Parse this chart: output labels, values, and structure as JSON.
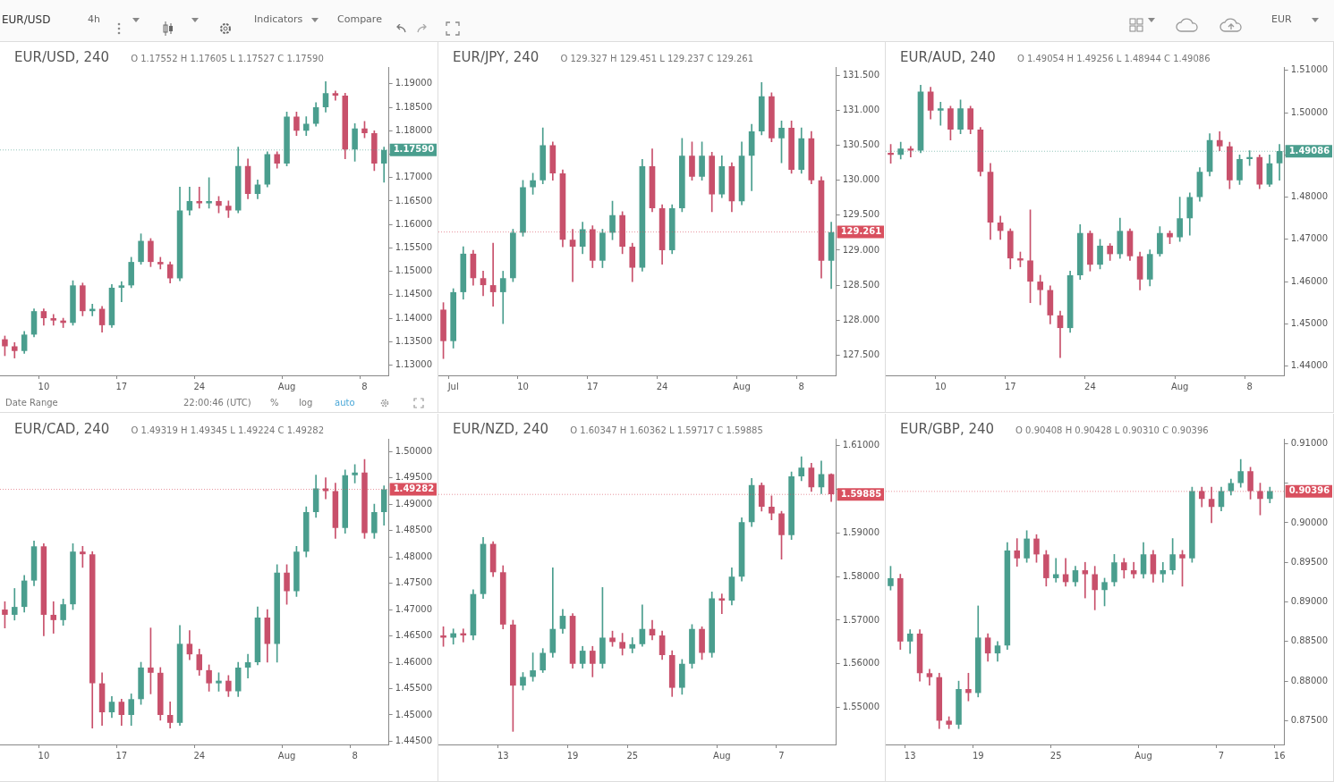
{
  "chart_data": [
    {
      "type": "other",
      "annotations": [
        "EUR/USD",
        "4h",
        "Indicators",
        "Compare",
        "EUR"
      ]
    },
    {
      "type": "candlestick",
      "title": "EUR/USD, 240",
      "subtitle": "O 1.17552 H 1.17605 L 1.17527 C 1.17590",
      "annotations": [
        "Date Range",
        "22:00:46 (UTC)",
        "%",
        "log",
        "auto"
      ],
      "categories": [
        null,
        null,
        null,
        null,
        "10",
        null,
        null,
        null,
        null,
        null,
        null,
        null,
        "17",
        null,
        null,
        null,
        null,
        null,
        null,
        null,
        "24",
        null,
        null,
        null,
        null,
        null,
        null,
        null,
        null,
        "Aug",
        null,
        null,
        null,
        null,
        null,
        null,
        null,
        "8",
        null,
        null
      ],
      "ohlc": [
        [
          1.1355,
          1.1362,
          1.132,
          1.134
        ],
        [
          1.134,
          1.1348,
          1.1315,
          1.133
        ],
        [
          1.133,
          1.1372,
          1.1325,
          1.1365
        ],
        [
          1.1365,
          1.142,
          1.136,
          1.1415
        ],
        [
          1.1415,
          1.142,
          1.1385,
          1.14
        ],
        [
          1.14,
          1.1408,
          1.1385,
          1.1395
        ],
        [
          1.1395,
          1.14,
          1.138,
          1.139
        ],
        [
          1.139,
          1.148,
          1.1385,
          1.147
        ],
        [
          1.147,
          1.1475,
          1.1405,
          1.1415
        ],
        [
          1.1415,
          1.143,
          1.1405,
          1.142
        ],
        [
          1.142,
          1.1425,
          1.137,
          1.1385
        ],
        [
          1.1385,
          1.1472,
          1.138,
          1.1465
        ],
        [
          1.1465,
          1.1478,
          1.1435,
          1.147
        ],
        [
          1.147,
          1.153,
          1.1465,
          1.152
        ],
        [
          1.152,
          1.158,
          1.1515,
          1.1565
        ],
        [
          1.1565,
          1.157,
          1.151,
          1.152
        ],
        [
          1.152,
          1.153,
          1.1505,
          1.1515
        ],
        [
          1.1515,
          1.152,
          1.1475,
          1.1485
        ],
        [
          1.1485,
          1.168,
          1.148,
          1.163
        ],
        [
          1.163,
          1.168,
          1.162,
          1.165
        ],
        [
          1.165,
          1.168,
          1.1635,
          1.1645
        ],
        [
          1.1645,
          1.17,
          1.1635,
          1.165
        ],
        [
          1.165,
          1.166,
          1.1625,
          1.164
        ],
        [
          1.164,
          1.165,
          1.1615,
          1.163
        ],
        [
          1.163,
          1.1765,
          1.1625,
          1.1725
        ],
        [
          1.1725,
          1.174,
          1.1655,
          1.1665
        ],
        [
          1.1665,
          1.1695,
          1.1655,
          1.1685
        ],
        [
          1.1685,
          1.1755,
          1.168,
          1.175
        ],
        [
          1.175,
          1.1755,
          1.172,
          1.173
        ],
        [
          1.173,
          1.184,
          1.1725,
          1.183
        ],
        [
          1.183,
          1.184,
          1.179,
          1.18
        ],
        [
          1.18,
          1.183,
          1.179,
          1.1815
        ],
        [
          1.1815,
          1.186,
          1.181,
          1.185
        ],
        [
          1.185,
          1.1905,
          1.184,
          1.188
        ],
        [
          1.188,
          1.1885,
          1.1865,
          1.1875
        ],
        [
          1.1875,
          1.188,
          1.174,
          1.176
        ],
        [
          1.176,
          1.1815,
          1.1735,
          1.1805
        ],
        [
          1.1805,
          1.182,
          1.1785,
          1.1795
        ],
        [
          1.1795,
          1.18,
          1.1715,
          1.173
        ],
        [
          1.173,
          1.1765,
          1.169,
          1.1759
        ]
      ],
      "colors": [
        "#c8506b",
        "#c8506b",
        "#4a9e8e",
        "#4a9e8e",
        "#c8506b",
        "#c8506b",
        "#c8506b",
        "#4a9e8e",
        "#c8506b",
        "#4a9e8e",
        "#c8506b",
        "#4a9e8e",
        "#4a9e8e",
        "#4a9e8e",
        "#4a9e8e",
        "#c8506b",
        "#c8506b",
        "#c8506b",
        "#4a9e8e",
        "#4a9e8e",
        "#c8506b",
        "#4a9e8e",
        "#c8506b",
        "#c8506b",
        "#4a9e8e",
        "#c8506b",
        "#4a9e8e",
        "#4a9e8e",
        "#c8506b",
        "#4a9e8e",
        "#c8506b",
        "#4a9e8e",
        "#4a9e8e",
        "#4a9e8e",
        "#c8506b",
        "#c8506b",
        "#4a9e8e",
        "#c8506b",
        "#c8506b",
        "#4a9e8e"
      ],
      "ylim": [
        1.1278,
        1.1936
      ],
      "yticks": [
        {
          "value": 1.13,
          "label": "1.13000"
        },
        {
          "value": 1.135,
          "label": "1.13500"
        },
        {
          "value": 1.14,
          "label": "1.14000"
        },
        {
          "value": 1.145,
          "label": "1.14500"
        },
        {
          "value": 1.15,
          "label": "1.15000"
        },
        {
          "value": 1.155,
          "label": "1.15500"
        },
        {
          "value": 1.16,
          "label": "1.16000"
        },
        {
          "value": 1.165,
          "label": "1.16500"
        },
        {
          "value": 1.17,
          "label": "1.17000"
        },
        {
          "value": 1.175,
          "label": null
        },
        {
          "value": 1.18,
          "label": "1.18000"
        },
        {
          "value": 1.185,
          "label": "1.18500"
        },
        {
          "value": 1.19,
          "label": "1.19000"
        }
      ],
      "ref_lines": [
        {
          "axis": "y",
          "value": 1.1759,
          "label": "1.17590",
          "color": "#4a9e8e",
          "line_style": "dotted"
        }
      ]
    },
    {
      "type": "candlestick",
      "title": "EUR/JPY, 240",
      "subtitle": "O 129.327 H 129.451 L 129.237 C 129.261",
      "categories": [
        null,
        "Jul",
        null,
        null,
        null,
        null,
        null,
        null,
        "10",
        null,
        null,
        null,
        null,
        null,
        null,
        "17",
        null,
        null,
        null,
        null,
        null,
        null,
        "24",
        null,
        null,
        null,
        null,
        null,
        null,
        null,
        "Aug",
        null,
        null,
        null,
        null,
        null,
        "8",
        null,
        null,
        null
      ],
      "ohlc": [
        [
          128.15,
          128.25,
          127.45,
          127.7
        ],
        [
          127.7,
          128.45,
          127.6,
          128.4
        ],
        [
          128.4,
          129.05,
          128.3,
          128.95
        ],
        [
          128.95,
          129.0,
          128.5,
          128.6
        ],
        [
          128.6,
          128.7,
          128.35,
          128.5
        ],
        [
          128.5,
          129.1,
          128.2,
          128.4
        ],
        [
          128.4,
          128.7,
          127.95,
          128.6
        ],
        [
          128.6,
          129.3,
          128.55,
          129.25
        ],
        [
          129.25,
          130.0,
          129.2,
          129.9
        ],
        [
          129.9,
          130.1,
          129.8,
          130.0
        ],
        [
          130.0,
          130.75,
          129.95,
          130.5
        ],
        [
          130.5,
          130.55,
          130.0,
          130.1
        ],
        [
          130.1,
          130.15,
          129.05,
          129.15
        ],
        [
          129.15,
          129.3,
          128.55,
          129.05
        ],
        [
          129.05,
          129.4,
          128.95,
          129.3
        ],
        [
          129.3,
          129.35,
          128.75,
          128.85
        ],
        [
          128.85,
          129.3,
          128.75,
          129.25
        ],
        [
          129.25,
          129.7,
          129.15,
          129.5
        ],
        [
          129.5,
          129.55,
          128.95,
          129.05
        ],
        [
          129.05,
          129.1,
          128.55,
          128.75
        ],
        [
          128.75,
          130.3,
          128.7,
          130.2
        ],
        [
          130.2,
          130.45,
          129.55,
          129.6
        ],
        [
          129.6,
          129.65,
          128.8,
          129.0
        ],
        [
          129.0,
          129.65,
          128.95,
          129.6
        ],
        [
          129.6,
          130.6,
          129.55,
          130.35
        ],
        [
          130.35,
          130.55,
          130.0,
          130.05
        ],
        [
          130.05,
          130.55,
          130.0,
          130.35
        ],
        [
          130.35,
          130.4,
          129.55,
          129.8
        ],
        [
          129.8,
          130.35,
          129.75,
          130.2
        ],
        [
          130.2,
          130.25,
          129.55,
          129.7
        ],
        [
          129.7,
          130.55,
          129.65,
          130.35
        ],
        [
          130.35,
          130.8,
          129.85,
          130.7
        ],
        [
          130.7,
          131.4,
          130.65,
          131.2
        ],
        [
          131.2,
          131.25,
          130.55,
          130.6
        ],
        [
          130.6,
          130.85,
          130.25,
          130.75
        ],
        [
          130.75,
          130.85,
          130.1,
          130.15
        ],
        [
          130.15,
          130.75,
          130.1,
          130.6
        ],
        [
          130.6,
          130.7,
          129.95,
          130.0
        ],
        [
          130.0,
          130.05,
          128.6,
          128.85
        ],
        [
          128.85,
          129.4,
          128.45,
          129.26
        ]
      ],
      "colors": [
        "#c8506b",
        "#4a9e8e",
        "#4a9e8e",
        "#c8506b",
        "#c8506b",
        "#c8506b",
        "#4a9e8e",
        "#4a9e8e",
        "#4a9e8e",
        "#4a9e8e",
        "#4a9e8e",
        "#c8506b",
        "#c8506b",
        "#c8506b",
        "#4a9e8e",
        "#c8506b",
        "#4a9e8e",
        "#4a9e8e",
        "#c8506b",
        "#c8506b",
        "#4a9e8e",
        "#c8506b",
        "#c8506b",
        "#4a9e8e",
        "#4a9e8e",
        "#c8506b",
        "#4a9e8e",
        "#c8506b",
        "#4a9e8e",
        "#c8506b",
        "#4a9e8e",
        "#4a9e8e",
        "#4a9e8e",
        "#c8506b",
        "#4a9e8e",
        "#c8506b",
        "#4a9e8e",
        "#c8506b",
        "#c8506b",
        "#4a9e8e"
      ],
      "ylim": [
        127.21,
        131.62
      ],
      "yticks": [
        {
          "value": 127.5,
          "label": "127.500"
        },
        {
          "value": 128,
          "label": "128.000"
        },
        {
          "value": 128.5,
          "label": "128.500"
        },
        {
          "value": 129,
          "label": "129.000"
        },
        {
          "value": 129.5,
          "label": "129.500"
        },
        {
          "value": 130,
          "label": "130.000"
        },
        {
          "value": 130.5,
          "label": "130.500"
        },
        {
          "value": 131,
          "label": "131.000"
        },
        {
          "value": 131.5,
          "label": "131.500"
        }
      ],
      "ref_lines": [
        {
          "axis": "y",
          "value": 129.261,
          "label": "129.261",
          "color": "#d9505f",
          "line_style": "dotted"
        }
      ]
    },
    {
      "type": "candlestick",
      "title": "EUR/AUD, 240",
      "subtitle": "O 1.49054 H 1.49256 L 1.48944 C 1.49086",
      "categories": [
        null,
        null,
        null,
        null,
        null,
        "10",
        null,
        null,
        null,
        null,
        null,
        null,
        "17",
        null,
        null,
        null,
        null,
        null,
        null,
        null,
        "24",
        null,
        null,
        null,
        null,
        null,
        null,
        null,
        null,
        "Aug",
        null,
        null,
        null,
        null,
        null,
        null,
        "8",
        null,
        null,
        null
      ],
      "ohlc": [
        [
          1.4905,
          1.4925,
          1.488,
          1.49
        ],
        [
          1.49,
          1.493,
          1.489,
          1.4915
        ],
        [
          1.4915,
          1.492,
          1.4895,
          1.491
        ],
        [
          1.491,
          1.5065,
          1.4905,
          1.505
        ],
        [
          1.505,
          1.506,
          1.4985,
          1.5005
        ],
        [
          1.5005,
          1.5025,
          1.497,
          1.501
        ],
        [
          1.501,
          1.5015,
          1.4935,
          1.496
        ],
        [
          1.496,
          1.503,
          1.495,
          1.501
        ],
        [
          1.501,
          1.5015,
          1.495,
          1.496
        ],
        [
          1.496,
          1.4965,
          1.485,
          1.486
        ],
        [
          1.486,
          1.488,
          1.47,
          1.474
        ],
        [
          1.474,
          1.4755,
          1.47,
          1.472
        ],
        [
          1.472,
          1.4725,
          1.463,
          1.4655
        ],
        [
          1.4655,
          1.467,
          1.4635,
          1.465
        ],
        [
          1.465,
          1.477,
          1.455,
          1.46
        ],
        [
          1.46,
          1.4615,
          1.4545,
          1.458
        ],
        [
          1.458,
          1.459,
          1.45,
          1.452
        ],
        [
          1.452,
          1.453,
          1.442,
          1.449
        ],
        [
          1.449,
          1.4625,
          1.448,
          1.4615
        ],
        [
          1.4615,
          1.4735,
          1.4605,
          1.4715
        ],
        [
          1.4715,
          1.472,
          1.4625,
          1.464
        ],
        [
          1.464,
          1.47,
          1.463,
          1.4685
        ],
        [
          1.4685,
          1.469,
          1.465,
          1.4665
        ],
        [
          1.4665,
          1.475,
          1.4655,
          1.472
        ],
        [
          1.472,
          1.4725,
          1.465,
          1.466
        ],
        [
          1.466,
          1.467,
          1.458,
          1.4605
        ],
        [
          1.4605,
          1.4675,
          1.459,
          1.4665
        ],
        [
          1.4665,
          1.473,
          1.466,
          1.4715
        ],
        [
          1.4715,
          1.472,
          1.469,
          1.4705
        ],
        [
          1.4705,
          1.48,
          1.4695,
          1.475
        ],
        [
          1.475,
          1.481,
          1.471,
          1.48
        ],
        [
          1.48,
          1.487,
          1.479,
          1.486
        ],
        [
          1.486,
          1.495,
          1.485,
          1.4935
        ],
        [
          1.4935,
          1.4955,
          1.491,
          1.492
        ],
        [
          1.492,
          1.493,
          1.482,
          1.484
        ],
        [
          1.484,
          1.49,
          1.483,
          1.489
        ],
        [
          1.489,
          1.491,
          1.4875,
          1.4895
        ],
        [
          1.4895,
          1.49,
          1.482,
          1.483
        ],
        [
          1.483,
          1.49,
          1.4825,
          1.488
        ],
        [
          1.488,
          1.4925,
          1.484,
          1.4909
        ]
      ],
      "colors": [
        "#c8506b",
        "#4a9e8e",
        "#c8506b",
        "#4a9e8e",
        "#c8506b",
        "#4a9e8e",
        "#c8506b",
        "#4a9e8e",
        "#c8506b",
        "#c8506b",
        "#c8506b",
        "#c8506b",
        "#c8506b",
        "#c8506b",
        "#c8506b",
        "#c8506b",
        "#c8506b",
        "#c8506b",
        "#4a9e8e",
        "#4a9e8e",
        "#c8506b",
        "#4a9e8e",
        "#c8506b",
        "#4a9e8e",
        "#c8506b",
        "#c8506b",
        "#4a9e8e",
        "#4a9e8e",
        "#c8506b",
        "#4a9e8e",
        "#4a9e8e",
        "#4a9e8e",
        "#4a9e8e",
        "#c8506b",
        "#c8506b",
        "#4a9e8e",
        "#4a9e8e",
        "#c8506b",
        "#4a9e8e",
        "#4a9e8e"
      ],
      "ylim": [
        1.4378,
        1.5108
      ],
      "yticks": [
        {
          "value": 1.44,
          "label": "1.44000"
        },
        {
          "value": 1.45,
          "label": "1.45000"
        },
        {
          "value": 1.46,
          "label": "1.46000"
        },
        {
          "value": 1.47,
          "label": "1.47000"
        },
        {
          "value": 1.48,
          "label": "1.48000"
        },
        {
          "value": 1.49,
          "label": null
        },
        {
          "value": 1.5,
          "label": "1.50000"
        },
        {
          "value": 1.51,
          "label": "1.51000"
        }
      ],
      "ref_lines": [
        {
          "axis": "y",
          "value": 1.49086,
          "label": "1.49086",
          "color": "#4a9e8e",
          "line_style": "dotted"
        }
      ]
    },
    {
      "type": "candlestick",
      "title": "EUR/CAD, 240",
      "subtitle": "O 1.49319 H 1.49345 L 1.49224 C 1.49282",
      "categories": [
        null,
        null,
        null,
        null,
        "10",
        null,
        null,
        null,
        null,
        null,
        null,
        null,
        "17",
        null,
        null,
        null,
        null,
        null,
        null,
        null,
        "24",
        null,
        null,
        null,
        null,
        null,
        null,
        null,
        null,
        "Aug",
        null,
        null,
        null,
        null,
        null,
        null,
        "8",
        null,
        null,
        null
      ],
      "ohlc": [
        [
          1.47,
          1.4715,
          1.4665,
          1.469
        ],
        [
          1.469,
          1.474,
          1.468,
          1.4705
        ],
        [
          1.4705,
          1.4765,
          1.4695,
          1.4755
        ],
        [
          1.4755,
          1.483,
          1.4745,
          1.482
        ],
        [
          1.482,
          1.4825,
          1.465,
          1.469
        ],
        [
          1.469,
          1.4715,
          1.4655,
          1.468
        ],
        [
          1.468,
          1.472,
          1.467,
          1.471
        ],
        [
          1.471,
          1.4825,
          1.47,
          1.481
        ],
        [
          1.481,
          1.482,
          1.478,
          1.4805
        ],
        [
          1.4805,
          1.481,
          1.4475,
          1.456
        ],
        [
          1.456,
          1.458,
          1.448,
          1.4505
        ],
        [
          1.4505,
          1.4535,
          1.4495,
          1.4525
        ],
        [
          1.4525,
          1.453,
          1.448,
          1.45
        ],
        [
          1.45,
          1.454,
          1.448,
          1.453
        ],
        [
          1.453,
          1.46,
          1.452,
          1.459
        ],
        [
          1.459,
          1.4665,
          1.454,
          1.458
        ],
        [
          1.458,
          1.459,
          1.449,
          1.45
        ],
        [
          1.45,
          1.4525,
          1.4475,
          1.4485
        ],
        [
          1.4485,
          1.467,
          1.448,
          1.4635
        ],
        [
          1.4635,
          1.466,
          1.4605,
          1.4615
        ],
        [
          1.4615,
          1.4625,
          1.4575,
          1.4585
        ],
        [
          1.4585,
          1.4595,
          1.4545,
          1.456
        ],
        [
          1.456,
          1.458,
          1.4545,
          1.4565
        ],
        [
          1.4565,
          1.4575,
          1.4535,
          1.4545
        ],
        [
          1.4545,
          1.46,
          1.4535,
          1.459
        ],
        [
          1.459,
          1.4615,
          1.457,
          1.46
        ],
        [
          1.46,
          1.4705,
          1.4595,
          1.4685
        ],
        [
          1.4685,
          1.47,
          1.46,
          1.4635
        ],
        [
          1.4635,
          1.4785,
          1.46,
          1.477
        ],
        [
          1.477,
          1.4785,
          1.471,
          1.4735
        ],
        [
          1.4735,
          1.482,
          1.4725,
          1.481
        ],
        [
          1.481,
          1.4895,
          1.48,
          1.4885
        ],
        [
          1.4885,
          1.4955,
          1.4875,
          1.493
        ],
        [
          1.493,
          1.495,
          1.491,
          1.4925
        ],
        [
          1.4925,
          1.494,
          1.4835,
          1.4855
        ],
        [
          1.4855,
          1.4965,
          1.4845,
          1.4955
        ],
        [
          1.4955,
          1.4975,
          1.494,
          1.496
        ],
        [
          1.496,
          1.4985,
          1.4835,
          1.4845
        ],
        [
          1.4845,
          1.49,
          1.4835,
          1.4885
        ],
        [
          1.4885,
          1.4935,
          1.486,
          1.4928
        ]
      ],
      "colors": [
        "#c8506b",
        "#4a9e8e",
        "#4a9e8e",
        "#4a9e8e",
        "#c8506b",
        "#c8506b",
        "#4a9e8e",
        "#4a9e8e",
        "#c8506b",
        "#c8506b",
        "#c8506b",
        "#4a9e8e",
        "#c8506b",
        "#4a9e8e",
        "#4a9e8e",
        "#c8506b",
        "#c8506b",
        "#c8506b",
        "#4a9e8e",
        "#c8506b",
        "#c8506b",
        "#c8506b",
        "#4a9e8e",
        "#c8506b",
        "#4a9e8e",
        "#4a9e8e",
        "#4a9e8e",
        "#c8506b",
        "#4a9e8e",
        "#c8506b",
        "#4a9e8e",
        "#4a9e8e",
        "#4a9e8e",
        "#c8506b",
        "#c8506b",
        "#4a9e8e",
        "#4a9e8e",
        "#c8506b",
        "#4a9e8e",
        "#4a9e8e"
      ],
      "ylim": [
        1.4444,
        1.5024
      ],
      "yticks": [
        {
          "value": 1.445,
          "label": "1.44500"
        },
        {
          "value": 1.45,
          "label": "1.45000"
        },
        {
          "value": 1.455,
          "label": "1.45500"
        },
        {
          "value": 1.46,
          "label": "1.46000"
        },
        {
          "value": 1.465,
          "label": "1.46500"
        },
        {
          "value": 1.47,
          "label": "1.47000"
        },
        {
          "value": 1.475,
          "label": "1.47500"
        },
        {
          "value": 1.48,
          "label": "1.48000"
        },
        {
          "value": 1.485,
          "label": "1.48500"
        },
        {
          "value": 1.49,
          "label": "1.49000"
        },
        {
          "value": 1.495,
          "label": "1.49500"
        },
        {
          "value": 1.5,
          "label": "1.50000"
        }
      ],
      "ref_lines": [
        {
          "axis": "y",
          "value": 1.49282,
          "label": "1.49282",
          "color": "#d9505f",
          "line_style": "dotted"
        }
      ]
    },
    {
      "type": "candlestick",
      "title": "EUR/NZD, 240",
      "subtitle": "O 1.60347 H 1.60362 L 1.59717 C 1.59885",
      "categories": [
        null,
        null,
        null,
        null,
        null,
        null,
        "13",
        null,
        null,
        null,
        null,
        null,
        null,
        "19",
        null,
        null,
        null,
        null,
        null,
        "25",
        null,
        null,
        null,
        null,
        null,
        null,
        null,
        null,
        "Aug",
        null,
        null,
        null,
        null,
        null,
        "7",
        null,
        null,
        null,
        null,
        null
      ],
      "ohlc": [
        [
          1.5665,
          1.5685,
          1.564,
          1.566
        ],
        [
          1.566,
          1.568,
          1.5645,
          1.567
        ],
        [
          1.567,
          1.568,
          1.565,
          1.5665
        ],
        [
          1.5665,
          1.577,
          1.5655,
          1.576
        ],
        [
          1.576,
          1.589,
          1.575,
          1.5875
        ],
        [
          1.5875,
          1.588,
          1.58,
          1.581
        ],
        [
          1.581,
          1.5825,
          1.568,
          1.569
        ],
        [
          1.569,
          1.57,
          1.5445,
          1.555
        ],
        [
          1.555,
          1.558,
          1.554,
          1.557
        ],
        [
          1.557,
          1.5625,
          1.556,
          1.5585
        ],
        [
          1.5585,
          1.5635,
          1.558,
          1.5625
        ],
        [
          1.5625,
          1.582,
          1.5615,
          1.568
        ],
        [
          1.568,
          1.5725,
          1.567,
          1.571
        ],
        [
          1.571,
          1.5715,
          1.559,
          1.56
        ],
        [
          1.56,
          1.564,
          1.559,
          1.563
        ],
        [
          1.563,
          1.564,
          1.557,
          1.56
        ],
        [
          1.56,
          1.5775,
          1.559,
          1.566
        ],
        [
          1.566,
          1.5675,
          1.564,
          1.565
        ],
        [
          1.565,
          1.567,
          1.562,
          1.5635
        ],
        [
          1.5635,
          1.566,
          1.5625,
          1.5645
        ],
        [
          1.5645,
          1.5735,
          1.564,
          1.568
        ],
        [
          1.568,
          1.57,
          1.5655,
          1.5665
        ],
        [
          1.5665,
          1.5675,
          1.561,
          1.562
        ],
        [
          1.562,
          1.563,
          1.5525,
          1.5545
        ],
        [
          1.5545,
          1.561,
          1.553,
          1.56
        ],
        [
          1.56,
          1.569,
          1.559,
          1.568
        ],
        [
          1.568,
          1.5685,
          1.561,
          1.5625
        ],
        [
          1.5625,
          1.5765,
          1.5615,
          1.575
        ],
        [
          1.575,
          1.576,
          1.5715,
          1.5745
        ],
        [
          1.5745,
          1.582,
          1.5735,
          1.58
        ],
        [
          1.58,
          1.5935,
          1.579,
          1.5925
        ],
        [
          1.5925,
          1.6025,
          1.5915,
          1.601
        ],
        [
          1.601,
          1.6015,
          1.595,
          1.596
        ],
        [
          1.596,
          1.5985,
          1.593,
          1.5945
        ],
        [
          1.5945,
          1.595,
          1.584,
          1.5895
        ],
        [
          1.5895,
          1.604,
          1.5885,
          1.603
        ],
        [
          1.603,
          1.6075,
          1.602,
          1.605
        ],
        [
          1.605,
          1.606,
          1.5995,
          1.6005
        ],
        [
          1.6005,
          1.6065,
          1.599,
          1.6035
        ],
        [
          1.6035,
          1.6036,
          1.5972,
          1.5989
        ]
      ],
      "colors": [
        "#c8506b",
        "#4a9e8e",
        "#c8506b",
        "#4a9e8e",
        "#4a9e8e",
        "#c8506b",
        "#c8506b",
        "#c8506b",
        "#4a9e8e",
        "#4a9e8e",
        "#4a9e8e",
        "#4a9e8e",
        "#4a9e8e",
        "#c8506b",
        "#4a9e8e",
        "#c8506b",
        "#4a9e8e",
        "#c8506b",
        "#c8506b",
        "#4a9e8e",
        "#4a9e8e",
        "#c8506b",
        "#c8506b",
        "#c8506b",
        "#4a9e8e",
        "#4a9e8e",
        "#c8506b",
        "#4a9e8e",
        "#c8506b",
        "#4a9e8e",
        "#4a9e8e",
        "#4a9e8e",
        "#c8506b",
        "#c8506b",
        "#c8506b",
        "#4a9e8e",
        "#4a9e8e",
        "#c8506b",
        "#4a9e8e",
        "#c8506b"
      ],
      "ylim": [
        1.5415,
        1.6116
      ],
      "yticks": [
        {
          "value": 1.55,
          "label": "1.55000"
        },
        {
          "value": 1.56,
          "label": "1.56000"
        },
        {
          "value": 1.57,
          "label": "1.57000"
        },
        {
          "value": 1.58,
          "label": "1.58000"
        },
        {
          "value": 1.59,
          "label": "1.59000"
        },
        {
          "value": 1.6,
          "label": null
        },
        {
          "value": 1.61,
          "label": "1.61000"
        }
      ],
      "ref_lines": [
        {
          "axis": "y",
          "value": 1.59885,
          "label": "1.59885",
          "color": "#d9505f",
          "line_style": "dotted"
        }
      ]
    },
    {
      "type": "candlestick",
      "title": "EUR/GBP, 240",
      "subtitle": "O 0.90408 H 0.90428 L 0.90310 C 0.90396",
      "categories": [
        null,
        null,
        "13",
        null,
        null,
        null,
        null,
        null,
        null,
        "19",
        null,
        null,
        null,
        null,
        null,
        null,
        null,
        "25",
        null,
        null,
        null,
        null,
        null,
        null,
        null,
        null,
        "Aug",
        null,
        null,
        null,
        null,
        null,
        null,
        null,
        "7",
        null,
        null,
        null,
        null,
        null,
        "16"
      ],
      "ohlc": [
        [
          0.892,
          0.8945,
          0.8915,
          0.893
        ],
        [
          0.893,
          0.8935,
          0.884,
          0.885
        ],
        [
          0.885,
          0.8865,
          0.8835,
          0.886
        ],
        [
          0.886,
          0.8865,
          0.88,
          0.881
        ],
        [
          0.881,
          0.8815,
          0.8795,
          0.8805
        ],
        [
          0.8805,
          0.881,
          0.874,
          0.875
        ],
        [
          0.875,
          0.8755,
          0.874,
          0.8745
        ],
        [
          0.8745,
          0.88,
          0.874,
          0.879
        ],
        [
          0.879,
          0.881,
          0.8775,
          0.8785
        ],
        [
          0.8785,
          0.8895,
          0.878,
          0.8855
        ],
        [
          0.8855,
          0.886,
          0.8825,
          0.8835
        ],
        [
          0.8835,
          0.885,
          0.8825,
          0.8845
        ],
        [
          0.8845,
          0.8975,
          0.884,
          0.8965
        ],
        [
          0.8965,
          0.898,
          0.8945,
          0.8955
        ],
        [
          0.8955,
          0.899,
          0.895,
          0.898
        ],
        [
          0.898,
          0.8985,
          0.895,
          0.896
        ],
        [
          0.896,
          0.8965,
          0.892,
          0.893
        ],
        [
          0.893,
          0.8955,
          0.8925,
          0.8935
        ],
        [
          0.8935,
          0.8955,
          0.892,
          0.8925
        ],
        [
          0.8925,
          0.8945,
          0.892,
          0.894
        ],
        [
          0.894,
          0.895,
          0.8905,
          0.8935
        ],
        [
          0.8935,
          0.8945,
          0.889,
          0.8915
        ],
        [
          0.8915,
          0.893,
          0.8895,
          0.8925
        ],
        [
          0.8925,
          0.896,
          0.892,
          0.895
        ],
        [
          0.895,
          0.8955,
          0.893,
          0.894
        ],
        [
          0.894,
          0.895,
          0.893,
          0.8935
        ],
        [
          0.8935,
          0.8975,
          0.893,
          0.896
        ],
        [
          0.896,
          0.8965,
          0.8925,
          0.8935
        ],
        [
          0.8935,
          0.895,
          0.8925,
          0.894
        ],
        [
          0.894,
          0.898,
          0.8935,
          0.896
        ],
        [
          0.896,
          0.8965,
          0.892,
          0.8955
        ],
        [
          0.8955,
          0.9045,
          0.895,
          0.904
        ],
        [
          0.904,
          0.9045,
          0.902,
          0.903
        ],
        [
          0.903,
          0.9045,
          0.9,
          0.902
        ],
        [
          0.902,
          0.9045,
          0.9015,
          0.904
        ],
        [
          0.904,
          0.9055,
          0.9035,
          0.905
        ],
        [
          0.905,
          0.908,
          0.9045,
          0.9065
        ],
        [
          0.9065,
          0.907,
          0.903,
          0.904
        ],
        [
          0.904,
          0.905,
          0.901,
          0.903
        ],
        [
          0.903,
          0.9045,
          0.9025,
          0.904
        ],
        null
      ],
      "colors": [
        "#4a9e8e",
        "#c8506b",
        "#4a9e8e",
        "#c8506b",
        "#c8506b",
        "#c8506b",
        "#c8506b",
        "#4a9e8e",
        "#c8506b",
        "#4a9e8e",
        "#c8506b",
        "#4a9e8e",
        "#4a9e8e",
        "#c8506b",
        "#4a9e8e",
        "#c8506b",
        "#c8506b",
        "#4a9e8e",
        "#c8506b",
        "#4a9e8e",
        "#c8506b",
        "#c8506b",
        "#4a9e8e",
        "#4a9e8e",
        "#c8506b",
        "#c8506b",
        "#4a9e8e",
        "#c8506b",
        "#4a9e8e",
        "#4a9e8e",
        "#c8506b",
        "#4a9e8e",
        "#c8506b",
        "#c8506b",
        "#4a9e8e",
        "#4a9e8e",
        "#4a9e8e",
        "#c8506b",
        "#c8506b",
        "#4a9e8e",
        null
      ],
      "ylim": [
        0.872,
        0.9106
      ],
      "yticks": [
        {
          "value": 0.875,
          "label": "0.87500"
        },
        {
          "value": 0.88,
          "label": "0.88000"
        },
        {
          "value": 0.885,
          "label": "0.88500"
        },
        {
          "value": 0.89,
          "label": "0.89000"
        },
        {
          "value": 0.895,
          "label": "0.89500"
        },
        {
          "value": 0.9,
          "label": "0.90000"
        },
        {
          "value": 0.905,
          "label": null
        },
        {
          "value": 0.91,
          "label": "0.91000"
        }
      ],
      "ref_lines": [
        {
          "axis": "y",
          "value": 0.90396,
          "label": "0.90396",
          "color": "#d9505f",
          "line_style": "dotted"
        }
      ]
    }
  ]
}
